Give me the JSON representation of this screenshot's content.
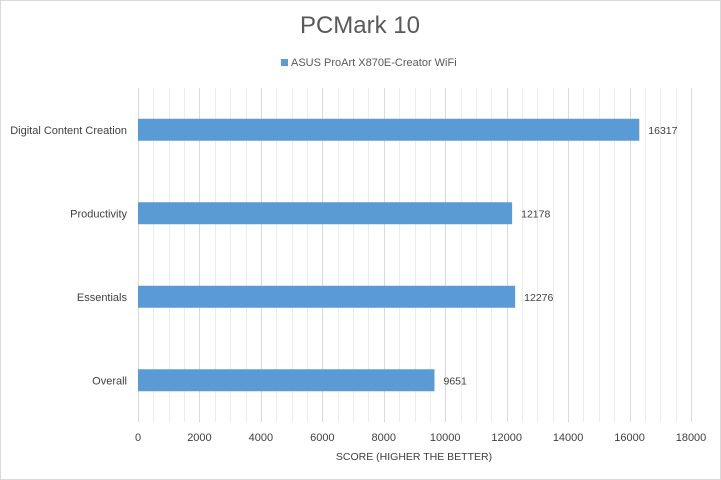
{
  "chart_data": {
    "type": "bar",
    "orientation": "horizontal",
    "title": "PCMark 10",
    "xlabel": "SCORE (HIGHER THE BETTER)",
    "ylabel": "",
    "categories": [
      "Digital Content Creation",
      "Productivity",
      "Essentials",
      "Overall"
    ],
    "series": [
      {
        "name": "ASUS ProArt X870E-Creator WiFi",
        "color": "#5b9bd5",
        "values": [
          16317,
          12178,
          12276,
          9651
        ]
      }
    ],
    "xlim": [
      0,
      18000
    ],
    "x_ticks": [
      0,
      2000,
      4000,
      6000,
      8000,
      10000,
      12000,
      14000,
      16000,
      18000
    ],
    "grid": true,
    "legend_position": "top",
    "data_labels": true
  }
}
